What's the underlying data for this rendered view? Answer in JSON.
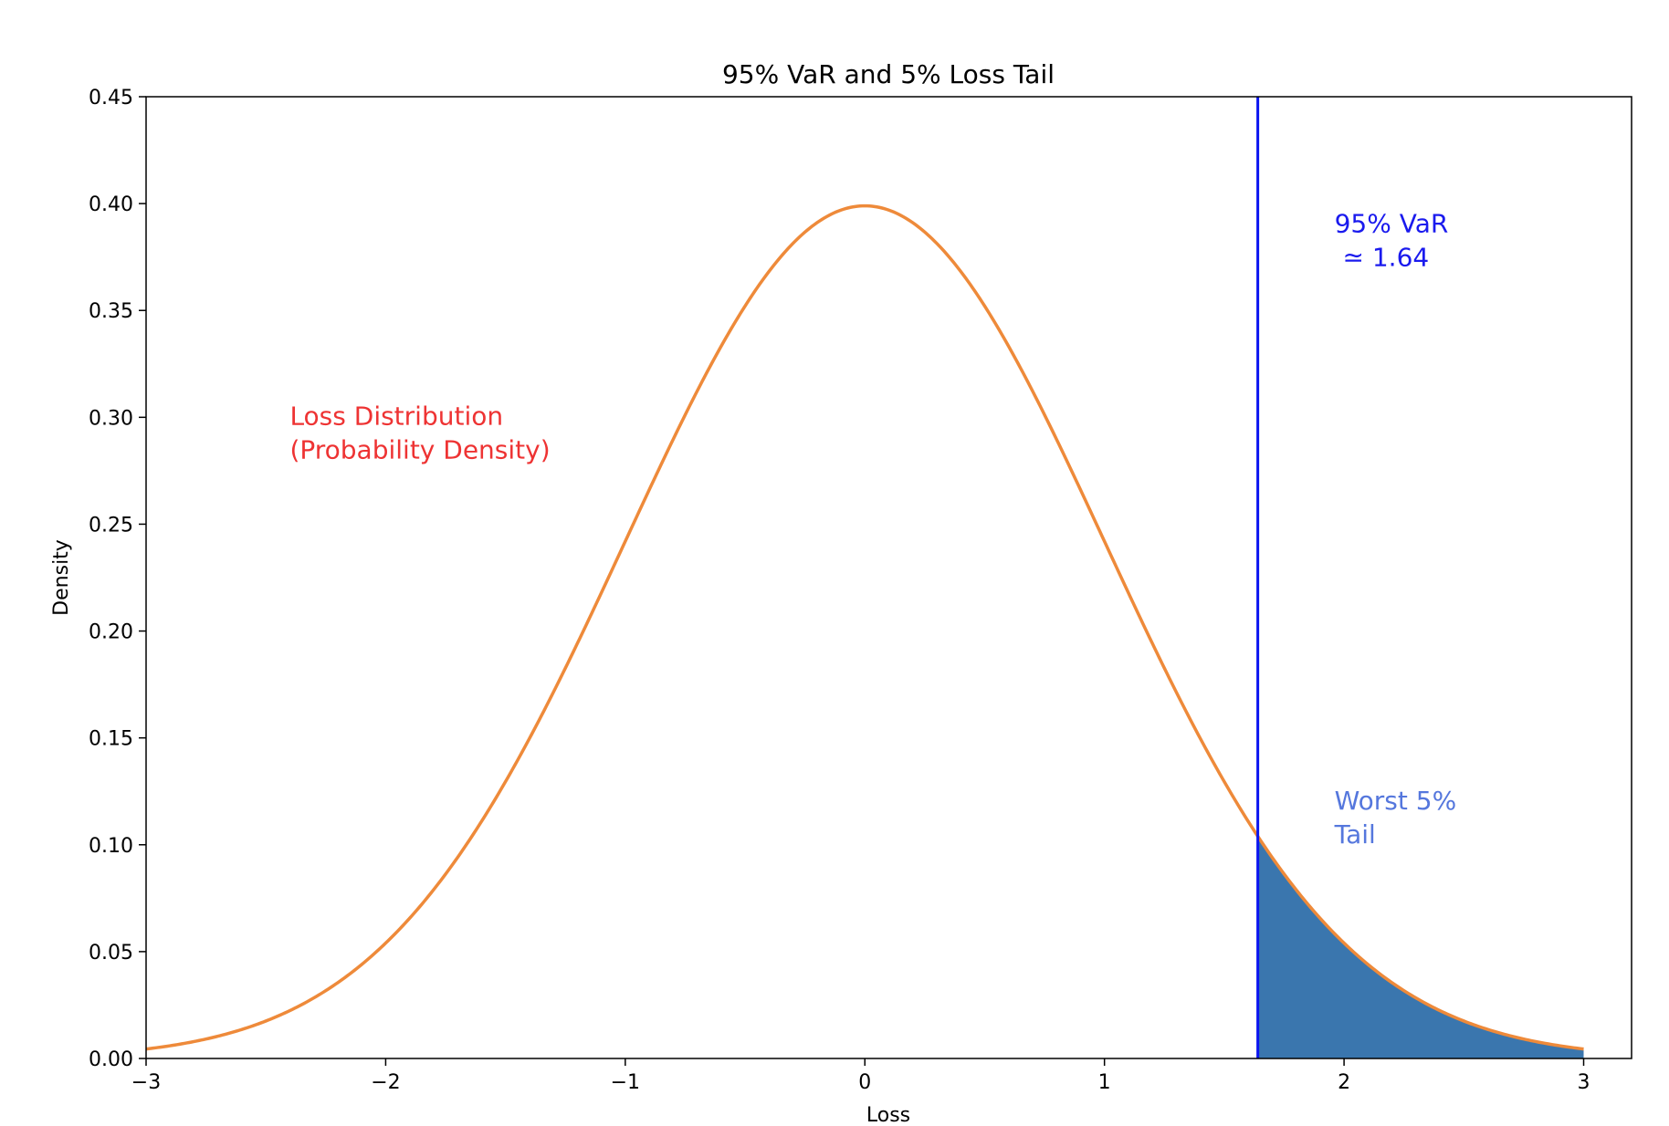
{
  "chart_data": {
    "type": "area",
    "title": "95% VaR and 5% Loss Tail",
    "xlabel": "Loss",
    "ylabel": "Density",
    "xlim": [
      -3,
      3.2
    ],
    "ylim": [
      0,
      0.45
    ],
    "xticks": [
      -3,
      -2,
      -1,
      0,
      1,
      2,
      3
    ],
    "xtick_labels": [
      "−3",
      "−2",
      "−1",
      "0",
      "1",
      "2",
      "3"
    ],
    "yticks": [
      0.0,
      0.05,
      0.1,
      0.15,
      0.2,
      0.25,
      0.3,
      0.35,
      0.4,
      0.45
    ],
    "ytick_labels": [
      "0.00",
      "0.05",
      "0.10",
      "0.15",
      "0.20",
      "0.25",
      "0.30",
      "0.35",
      "0.40",
      "0.45"
    ],
    "grid": false,
    "series": [
      {
        "kind": "line",
        "distribution": "standard normal pdf",
        "x_range": [
          -3,
          3
        ],
        "color": "#ee8a3a",
        "x": [
          -3.0,
          -2.75,
          -2.5,
          -2.25,
          -2.0,
          -1.75,
          -1.5,
          -1.25,
          -1.0,
          -0.75,
          -0.5,
          -0.25,
          0.0,
          0.25,
          0.5,
          0.75,
          1.0,
          1.25,
          1.5,
          1.75,
          2.0,
          2.25,
          2.5,
          2.75,
          3.0
        ],
        "y": [
          0.0044,
          0.0091,
          0.0175,
          0.0317,
          0.054,
          0.0863,
          0.1295,
          0.1826,
          0.242,
          0.3011,
          0.3521,
          0.3867,
          0.3989,
          0.3867,
          0.3521,
          0.3011,
          0.242,
          0.1826,
          0.1295,
          0.0863,
          0.054,
          0.0317,
          0.0175,
          0.0091,
          0.0044
        ]
      },
      {
        "kind": "fill",
        "x_range": [
          1.64,
          3.0
        ],
        "color": "#3a76ae"
      },
      {
        "kind": "vline",
        "x": 1.64,
        "color": "#0a14f0"
      }
    ],
    "annotations": [
      {
        "lines": [
          "Loss Distribution",
          "(Probability Density)"
        ],
        "x": -2.4,
        "y": 0.285,
        "color": "#ee3333"
      },
      {
        "lines": [
          "95% VaR",
          " ≃ 1.64"
        ],
        "x": 1.96,
        "y": 0.375,
        "color": "#1a1aee"
      },
      {
        "lines": [
          "Worst 5%",
          "Tail"
        ],
        "x": 1.96,
        "y": 0.105,
        "color": "#5577dd"
      }
    ]
  }
}
